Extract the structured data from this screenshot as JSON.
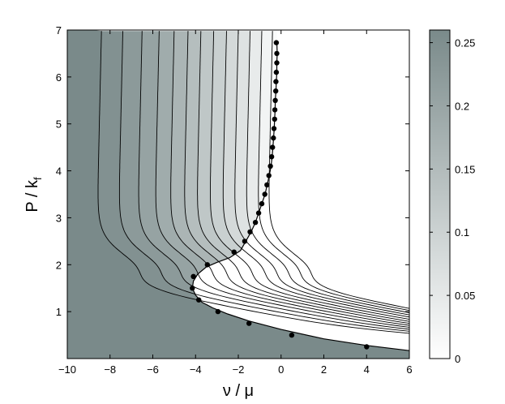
{
  "chart_data": {
    "type": "contour",
    "xlabel": "ν / μ",
    "ylabel": "P / k",
    "ylabel_sub": "f",
    "xlim": [
      -10,
      6
    ],
    "ylim": [
      0,
      7
    ],
    "x_ticks": [
      -10,
      -8,
      -6,
      -4,
      -2,
      0,
      2,
      4,
      6
    ],
    "x_tick_labels": [
      "−10",
      "−8",
      "−6",
      "−4",
      "−2",
      "0",
      "2",
      "4",
      "6"
    ],
    "y_ticks": [
      1,
      2,
      3,
      4,
      5,
      6,
      7
    ],
    "y_tick_labels": [
      "1",
      "2",
      "3",
      "4",
      "5",
      "6",
      "7"
    ],
    "colorbar": {
      "range": [
        0,
        0.26
      ],
      "ticks": [
        0,
        0.05,
        0.1,
        0.15,
        0.2,
        0.25
      ],
      "tick_labels": [
        "0",
        "0.05",
        "0.1",
        "0.15",
        "0.2",
        "0.25"
      ],
      "color_low": "#ffffff",
      "color_high": "#7a8a8a"
    },
    "boundary_curve": {
      "name": "phase boundary",
      "points": [
        [
          -0.2,
          6.75
        ],
        [
          -0.18,
          6.5
        ],
        [
          -0.2,
          6.3
        ],
        [
          -0.2,
          6.1
        ],
        [
          -0.22,
          5.9
        ],
        [
          -0.24,
          5.7
        ],
        [
          -0.27,
          5.5
        ],
        [
          -0.28,
          5.3
        ],
        [
          -0.3,
          5.1
        ],
        [
          -0.32,
          4.9
        ],
        [
          -0.35,
          4.7
        ],
        [
          -0.38,
          4.5
        ],
        [
          -0.42,
          4.3
        ],
        [
          -0.47,
          4.1
        ],
        [
          -0.55,
          3.9
        ],
        [
          -0.65,
          3.7
        ],
        [
          -0.75,
          3.5
        ],
        [
          -0.9,
          3.3
        ],
        [
          -1.05,
          3.1
        ],
        [
          -1.2,
          2.9
        ],
        [
          -1.4,
          2.7
        ],
        [
          -1.65,
          2.5
        ],
        [
          -1.9,
          2.3
        ],
        [
          -2.4,
          2.15
        ],
        [
          -3.0,
          2.05
        ],
        [
          -3.5,
          1.95
        ],
        [
          -3.9,
          1.8
        ],
        [
          -4.1,
          1.65
        ],
        [
          -4.15,
          1.5
        ],
        [
          -4.0,
          1.35
        ],
        [
          -3.7,
          1.2
        ],
        [
          -3.2,
          1.08
        ],
        [
          -2.5,
          0.95
        ],
        [
          -1.5,
          0.8
        ],
        [
          0,
          0.62
        ],
        [
          2,
          0.42
        ],
        [
          4,
          0.28
        ],
        [
          6,
          0.17
        ]
      ]
    },
    "markers": {
      "points": [
        [
          -0.22,
          6.73
        ],
        [
          -0.2,
          6.5
        ],
        [
          -0.2,
          6.3
        ],
        [
          -0.22,
          6.1
        ],
        [
          -0.24,
          5.9
        ],
        [
          -0.25,
          5.7
        ],
        [
          -0.27,
          5.5
        ],
        [
          -0.29,
          5.3
        ],
        [
          -0.3,
          5.1
        ],
        [
          -0.33,
          4.9
        ],
        [
          -0.36,
          4.7
        ],
        [
          -0.4,
          4.5
        ],
        [
          -0.44,
          4.3
        ],
        [
          -0.5,
          4.1
        ],
        [
          -0.57,
          3.9
        ],
        [
          -0.66,
          3.7
        ],
        [
          -0.76,
          3.5
        ],
        [
          -0.9,
          3.3
        ],
        [
          -1.05,
          3.1
        ],
        [
          -1.2,
          2.9
        ],
        [
          -1.45,
          2.7
        ],
        [
          -1.7,
          2.5
        ],
        [
          -2.2,
          2.27
        ],
        [
          -3.45,
          2.0
        ],
        [
          -4.1,
          1.75
        ],
        [
          -4.15,
          1.5
        ],
        [
          -3.85,
          1.25
        ],
        [
          -2.95,
          1.0
        ],
        [
          -1.5,
          0.75
        ],
        [
          0.5,
          0.5
        ],
        [
          4,
          0.25
        ]
      ]
    },
    "contour_levels": [
      {
        "a": -8.55,
        "v": 0.245
      },
      {
        "a": -7.55,
        "v": 0.225
      },
      {
        "a": -6.65,
        "v": 0.205
      },
      {
        "a": -5.85,
        "v": 0.185
      },
      {
        "a": -5.15,
        "v": 0.165
      },
      {
        "a": -4.5,
        "v": 0.145
      },
      {
        "a": -3.9,
        "v": 0.125
      },
      {
        "a": -3.3,
        "v": 0.105
      },
      {
        "a": -2.7,
        "v": 0.085
      },
      {
        "a": -2.15,
        "v": 0.065
      },
      {
        "a": -1.6,
        "v": 0.045
      },
      {
        "a": -1.05,
        "v": 0.025
      },
      {
        "a": -0.55,
        "v": 0.01
      }
    ]
  }
}
